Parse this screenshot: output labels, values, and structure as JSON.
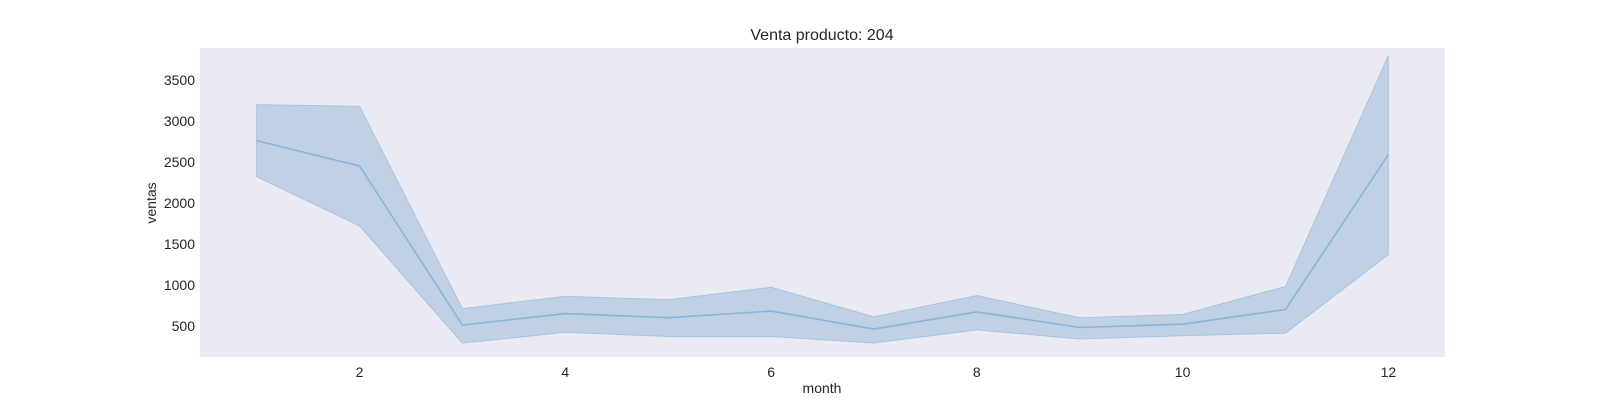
{
  "chart_data": {
    "type": "line",
    "title": "Venta producto: 204",
    "xlabel": "month",
    "ylabel": "ventas",
    "x": [
      1,
      2,
      3,
      4,
      5,
      6,
      7,
      8,
      9,
      10,
      11,
      12
    ],
    "series": [
      {
        "values": [
          2760,
          2450,
          510,
          650,
          600,
          680,
          460,
          670,
          480,
          520,
          700,
          2590
        ],
        "ci_lower": [
          2320,
          1720,
          290,
          420,
          370,
          370,
          290,
          450,
          340,
          380,
          410,
          1370
        ],
        "ci_upper": [
          3200,
          3180,
          710,
          860,
          820,
          970,
          610,
          870,
          600,
          640,
          980,
          3800
        ],
        "color": "#8db4d8"
      }
    ],
    "xticks": [
      2,
      4,
      6,
      8,
      10,
      12
    ],
    "yticks": [
      500,
      1000,
      1500,
      2000,
      2500,
      3000,
      3500
    ],
    "xlim": [
      0.45,
      12.55
    ],
    "ylim": [
      120,
      3890
    ],
    "grid": false,
    "background": "#eaeaf2"
  }
}
